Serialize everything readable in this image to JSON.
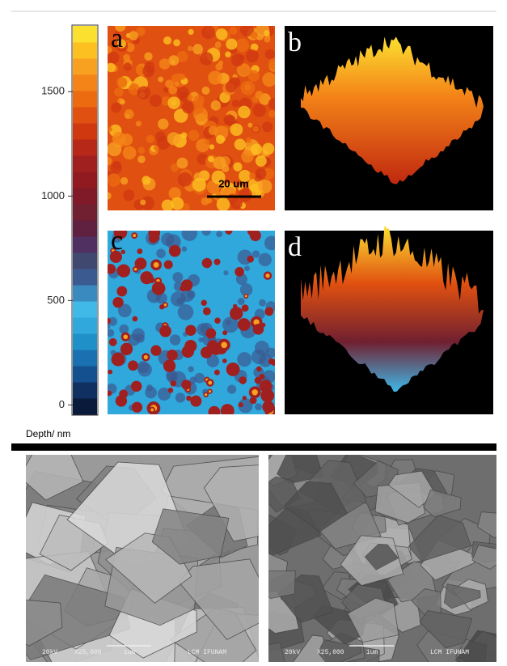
{
  "colorbar": {
    "label": "Depth/ nm",
    "lim": [
      -45,
      1815
    ],
    "ticks": [
      0,
      500,
      1000,
      1500
    ],
    "colors": [
      "#0a1a3a",
      "#0f3060",
      "#145090",
      "#1a70b0",
      "#2090c8",
      "#30a8dc",
      "#40b8e8",
      "#3a8ac0",
      "#3a5a90",
      "#404870",
      "#503060",
      "#602040",
      "#702030",
      "#801a28",
      "#901a20",
      "#a02020",
      "#b82818",
      "#d03810",
      "#e05010",
      "#ec6a10",
      "#f48418",
      "#f8a020",
      "#fcc020",
      "#fce030"
    ]
  },
  "panels": [
    {
      "label": "a",
      "scale_bar": "20 um"
    },
    {
      "label": "b"
    },
    {
      "label": "c"
    },
    {
      "label": "d"
    }
  ],
  "sem_images": [
    {
      "voltage": "20kV",
      "magnification": "X25,000",
      "scale": "1um",
      "lab": "LCM IFUNAM"
    },
    {
      "voltage": "20kV",
      "magnification": "X25,000",
      "scale": "1um",
      "lab": "LCM IFUNAM"
    }
  ]
}
